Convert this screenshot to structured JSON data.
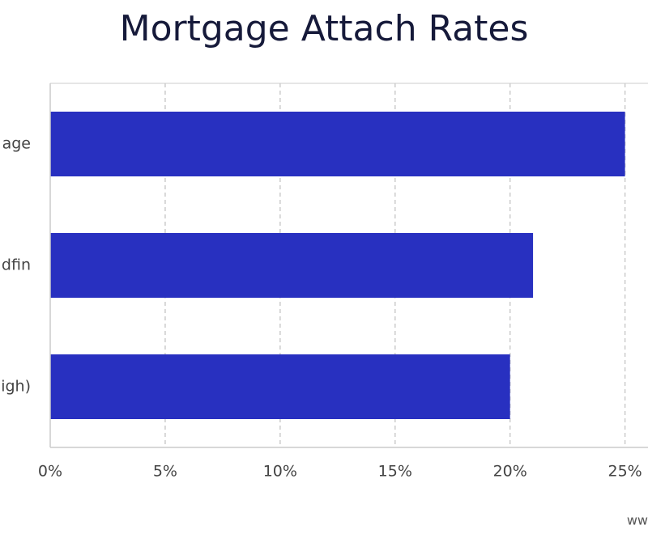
{
  "chart_data": {
    "type": "bar",
    "orientation": "horizontal",
    "title": "Mortgage Attach Rates",
    "categories": [
      "age",
      "dfin",
      "igh)"
    ],
    "values": [
      25,
      21,
      20
    ],
    "color": "#2830c0",
    "xlim": [
      0,
      26
    ],
    "xticks": [
      {
        "value": 0,
        "label": "0%"
      },
      {
        "value": 5,
        "label": "5%"
      },
      {
        "value": 10,
        "label": "10%"
      },
      {
        "value": 15,
        "label": "15%"
      },
      {
        "value": 20,
        "label": "20%"
      },
      {
        "value": 25,
        "label": "25%"
      }
    ],
    "grid": true,
    "footer": "ww"
  }
}
